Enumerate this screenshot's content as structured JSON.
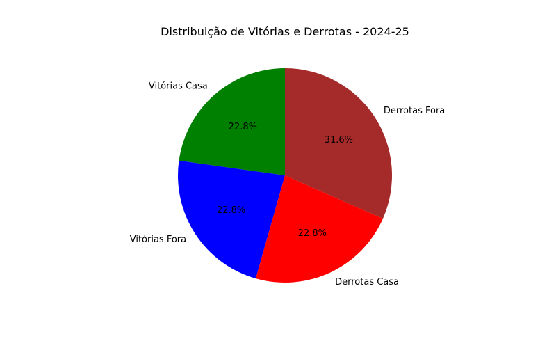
{
  "chart_data": {
    "type": "pie",
    "title": "Distribuição de Vitórias e Derrotas - 2024-25",
    "categories": [
      "Vitórias Casa",
      "Vitórias Fora",
      "Derrotas Casa",
      "Derrotas Fora"
    ],
    "values": [
      22.8,
      22.8,
      22.8,
      31.6
    ],
    "value_labels": [
      "22.8%",
      "22.8%",
      "22.8%",
      "31.6%"
    ],
    "colors": [
      "#008000",
      "#0000ff",
      "#ff0000",
      "#a52a2a"
    ],
    "start_angle_deg": 90,
    "direction": "counterclockwise",
    "legend": "none"
  }
}
